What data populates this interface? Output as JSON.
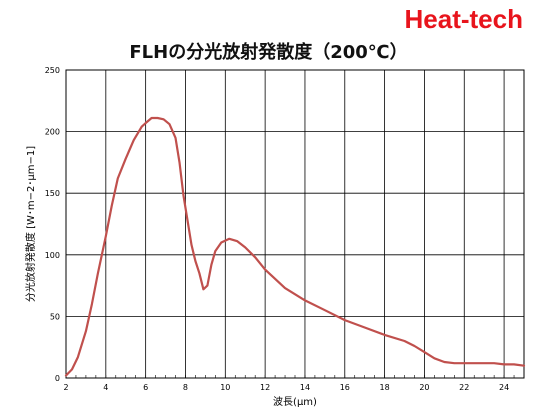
{
  "brand": {
    "text": "Heat-tech",
    "color": "#e8141c"
  },
  "chart_data": {
    "type": "line",
    "title": "FLHの分光放射発散度（200℃）",
    "xlabel": "波長(μm)",
    "ylabel": "分光放射発散度 [W･m−2･μm−1]",
    "xlim": [
      2,
      25
    ],
    "ylim": [
      0,
      250
    ],
    "xticks": [
      2,
      4,
      6,
      8,
      10,
      12,
      14,
      16,
      18,
      20,
      22,
      24
    ],
    "yticks": [
      0,
      50,
      100,
      150,
      200,
      250
    ],
    "grid": true,
    "line_color": "#c0504d",
    "series": [
      {
        "x": [
          2.0,
          2.3,
          2.6,
          3.0,
          3.3,
          3.6,
          4.0,
          4.3,
          4.6,
          5.0,
          5.4,
          5.8,
          6.0,
          6.3,
          6.6,
          6.9,
          7.2,
          7.5,
          7.7,
          7.9,
          8.1,
          8.3,
          8.5,
          8.7,
          8.9,
          9.1,
          9.3,
          9.5,
          9.8,
          10.2,
          10.6,
          11.0,
          11.5,
          12.0,
          13.0,
          14.0,
          15.0,
          16.0,
          17.0,
          18.0,
          19.0,
          19.5,
          20.0,
          20.5,
          21.0,
          21.5,
          22.0,
          22.5,
          23.0,
          23.5,
          24.0,
          24.5,
          25.0
        ],
        "y": [
          2,
          7,
          17,
          38,
          60,
          85,
          115,
          140,
          162,
          178,
          193,
          204,
          207,
          211,
          211,
          210,
          206,
          195,
          175,
          148,
          128,
          108,
          95,
          85,
          72,
          75,
          92,
          103,
          110,
          113,
          111,
          106,
          98,
          88,
          73,
          63,
          55,
          47,
          41,
          35,
          30,
          26,
          21,
          16,
          13,
          12,
          12,
          12,
          12,
          12,
          11,
          11,
          10
        ]
      }
    ]
  }
}
